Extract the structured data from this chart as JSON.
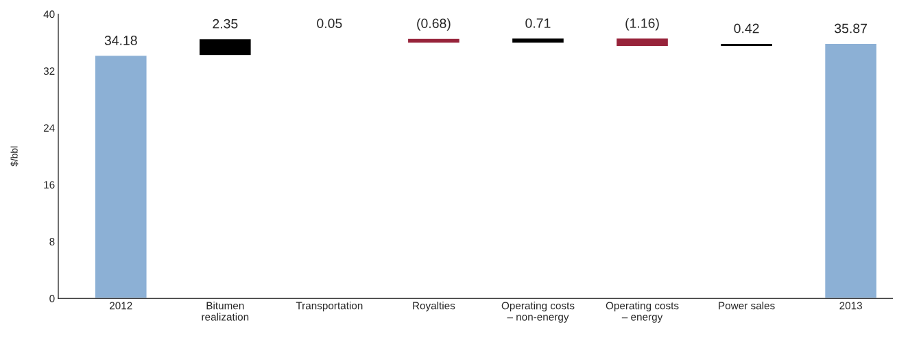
{
  "chart_data": {
    "type": "bar",
    "ylabel": "$/bbl",
    "categories": [
      "2012",
      "Bitumen\nrealization",
      "Transportation",
      "Royalties",
      "Operating costs\n– non-energy",
      "Operating costs\n– energy",
      "Power sales",
      "2013"
    ],
    "values": [
      34.18,
      2.35,
      0.05,
      -0.68,
      0.71,
      -1.16,
      0.42,
      35.87
    ],
    "base": [
      0,
      34.18,
      36.53,
      36.58,
      35.9,
      36.61,
      35.45,
      0
    ],
    "colors": [
      "#8cb0d5",
      "#000000",
      "#000000",
      "#97233a",
      "#000000",
      "#97233a",
      "#000000",
      "#8cb0d5"
    ],
    "value_labels": [
      "34.18",
      "2.35",
      "0.05",
      "(0.68)",
      "0.71",
      "(1.16)",
      "0.42",
      "35.87"
    ],
    "ylim": [
      0,
      40
    ],
    "yticks": [
      0,
      8,
      16,
      24,
      32,
      40
    ],
    "grid": false,
    "legend": false
  }
}
